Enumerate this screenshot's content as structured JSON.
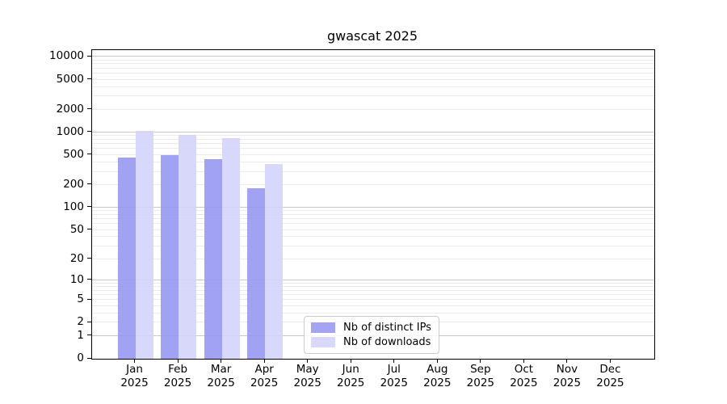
{
  "figure": {
    "background": "#ffffff"
  },
  "chart_data": {
    "type": "bar",
    "title": "gwascat 2025",
    "categories": [
      "Jan",
      "Feb",
      "Mar",
      "Apr",
      "May",
      "Jun",
      "Jul",
      "Aug",
      "Sep",
      "Oct",
      "Nov",
      "Dec"
    ],
    "x_tick_year": "2025",
    "series": [
      {
        "name": "Nb of distinct IPs",
        "color": "rgba(149,149,241,0.88)",
        "legend_color": "#a4a4f0",
        "values": [
          455,
          490,
          430,
          178,
          0,
          0,
          0,
          0,
          0,
          0,
          0,
          0
        ]
      },
      {
        "name": "Nb of downloads",
        "color": "rgba(211,211,250,0.88)",
        "legend_color": "#d8d8f8",
        "values": [
          1020,
          900,
          810,
          370,
          0,
          0,
          0,
          0,
          0,
          0,
          0,
          0
        ]
      }
    ],
    "yscale": "log1p",
    "yticks": [
      0,
      1,
      2,
      5,
      10,
      20,
      50,
      100,
      200,
      500,
      1000,
      2000,
      5000,
      10000
    ],
    "ylim": [
      0,
      12300
    ],
    "grid": true,
    "legend_position": "lower-center"
  },
  "style_colors": {
    "grid_major": "#c8c8c8",
    "grid_minor": "#ebebeb",
    "spine": "#000000",
    "tick_text": "#000000",
    "legend_border": "#cccccc"
  }
}
